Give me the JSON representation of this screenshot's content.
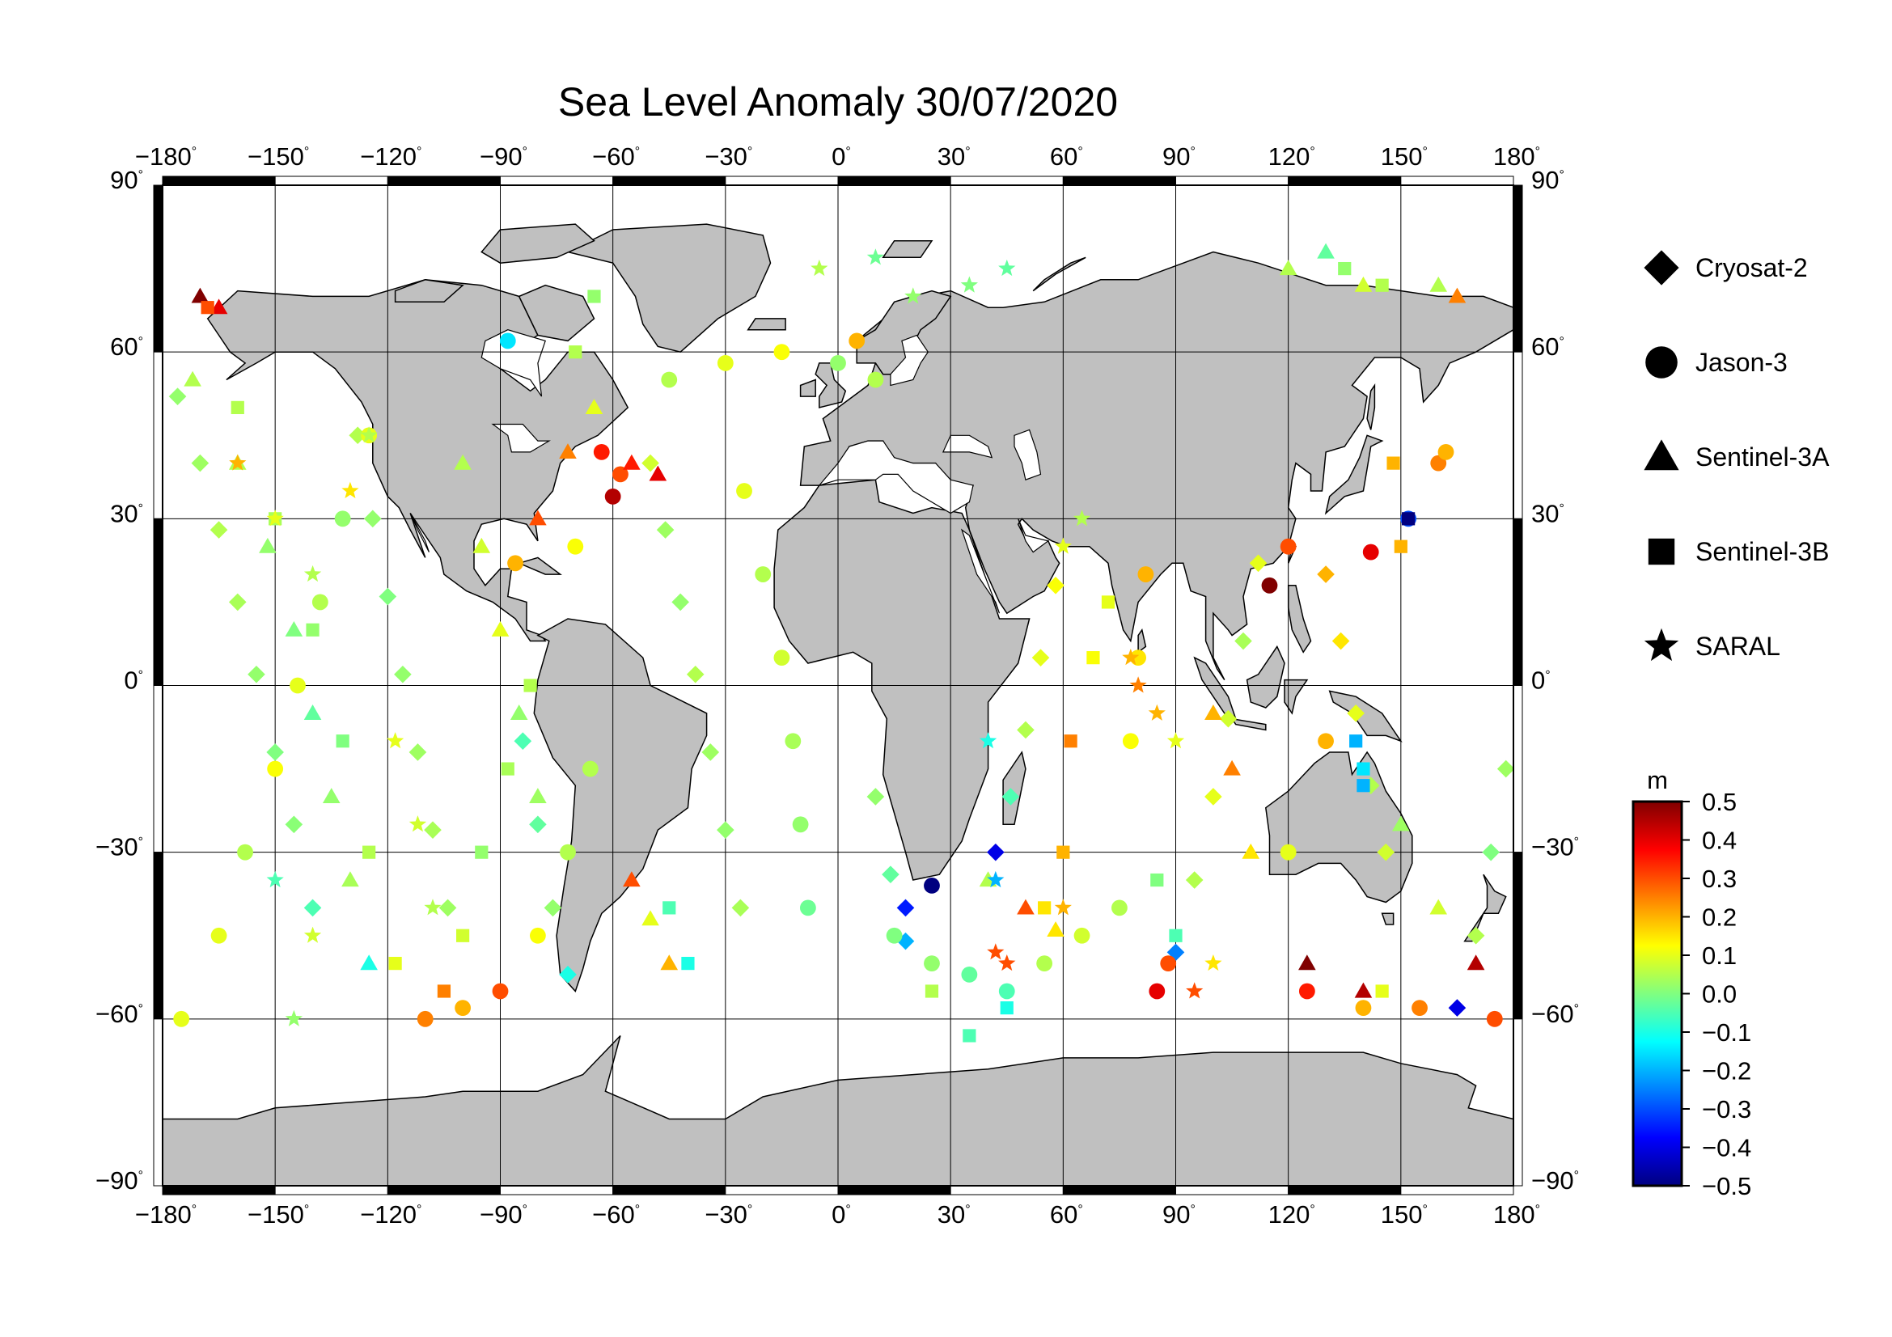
{
  "title": "Sea Level Anomaly 30/07/2020",
  "axes": {
    "lon_ticks": [
      -180,
      -150,
      -120,
      -90,
      -60,
      -30,
      0,
      30,
      60,
      90,
      120,
      150,
      180
    ],
    "lat_ticks": [
      90,
      60,
      30,
      0,
      -30,
      -60,
      -90
    ],
    "degree_symbol": "°"
  },
  "legend": [
    {
      "marker": "diamond",
      "label": "Cryosat-2"
    },
    {
      "marker": "circle",
      "label": "Jason-3"
    },
    {
      "marker": "triangle",
      "label": "Sentinel-3A"
    },
    {
      "marker": "square",
      "label": "Sentinel-3B"
    },
    {
      "marker": "star",
      "label": "SARAL"
    }
  ],
  "colorbar": {
    "unit": "m",
    "min": -0.5,
    "max": 0.5,
    "ticks": [
      "0.5",
      "0.4",
      "0.3",
      "0.2",
      "0.1",
      "0.0",
      "−0.1",
      "−0.2",
      "−0.3",
      "−0.4",
      "−0.5"
    ],
    "colors": [
      "#000080",
      "#0000ff",
      "#0080ff",
      "#00ffff",
      "#80ff80",
      "#ffff00",
      "#ff8000",
      "#ff0000",
      "#800000"
    ]
  },
  "land_color": "#c0c0c0",
  "ocean_color": "#ffffff",
  "chart_data": {
    "type": "scatter",
    "title": "Sea Level Anomaly 30/07/2020",
    "xlim": [
      -180,
      180
    ],
    "ylim": [
      -90,
      90
    ],
    "color_scale": {
      "min": -0.5,
      "max": 0.5,
      "unit": "m"
    },
    "series": [
      {
        "name": "Cryosat-2",
        "marker": "diamond",
        "points": [
          [
            -176,
            52,
            0.02
          ],
          [
            -170,
            40,
            0.03
          ],
          [
            -165,
            28,
            0.05
          ],
          [
            -160,
            15,
            0.04
          ],
          [
            -155,
            2,
            0.02
          ],
          [
            -150,
            -12,
            0.0
          ],
          [
            -145,
            -25,
            0.01
          ],
          [
            -140,
            -40,
            -0.05
          ],
          [
            -128,
            45,
            0.05
          ],
          [
            -124,
            30,
            0.02
          ],
          [
            -120,
            16,
            0.0
          ],
          [
            -116,
            2,
            0.02
          ],
          [
            -112,
            -12,
            0.03
          ],
          [
            -108,
            -26,
            0.04
          ],
          [
            -104,
            -40,
            0.03
          ],
          [
            -84,
            -10,
            -0.05
          ],
          [
            -80,
            -25,
            -0.03
          ],
          [
            -76,
            -40,
            0.02
          ],
          [
            -72,
            -52,
            -0.1
          ],
          [
            -50,
            40,
            0.08
          ],
          [
            -46,
            28,
            0.03
          ],
          [
            -42,
            15,
            0.02
          ],
          [
            -38,
            2,
            0.05
          ],
          [
            -34,
            -12,
            0.03
          ],
          [
            -30,
            -26,
            0.02
          ],
          [
            -26,
            -40,
            0.04
          ],
          [
            10,
            -20,
            0.02
          ],
          [
            14,
            -34,
            -0.03
          ],
          [
            18,
            -46,
            -0.2
          ],
          [
            18,
            -40,
            -0.35
          ],
          [
            42,
            -30,
            -0.4
          ],
          [
            46,
            -20,
            -0.05
          ],
          [
            50,
            -8,
            0.05
          ],
          [
            54,
            5,
            0.1
          ],
          [
            58,
            18,
            0.12
          ],
          [
            90,
            -48,
            -0.25
          ],
          [
            95,
            -35,
            0.05
          ],
          [
            100,
            -20,
            0.1
          ],
          [
            104,
            -6,
            0.08
          ],
          [
            108,
            8,
            0.04
          ],
          [
            112,
            22,
            0.1
          ],
          [
            130,
            20,
            0.2
          ],
          [
            134,
            8,
            0.15
          ],
          [
            138,
            -5,
            0.1
          ],
          [
            142,
            -18,
            0.05
          ],
          [
            146,
            -30,
            0.08
          ],
          [
            165,
            -58,
            -0.4
          ],
          [
            170,
            -45,
            0.05
          ],
          [
            174,
            -30,
            0.0
          ],
          [
            178,
            -15,
            0.03
          ]
        ]
      },
      {
        "name": "Jason-3",
        "marker": "circle",
        "points": [
          [
            -175,
            -60,
            0.1
          ],
          [
            -165,
            -45,
            0.1
          ],
          [
            -158,
            -30,
            0.05
          ],
          [
            -150,
            -15,
            0.12
          ],
          [
            -144,
            0,
            0.1
          ],
          [
            -138,
            15,
            0.05
          ],
          [
            -132,
            30,
            0.02
          ],
          [
            -125,
            45,
            0.1
          ],
          [
            -110,
            -60,
            0.25
          ],
          [
            -100,
            -58,
            0.2
          ],
          [
            -90,
            -55,
            0.3
          ],
          [
            -80,
            -45,
            0.12
          ],
          [
            -72,
            -30,
            0.05
          ],
          [
            -66,
            -15,
            0.05
          ],
          [
            -88,
            62,
            -0.15
          ],
          [
            -60,
            34,
            0.45
          ],
          [
            -58,
            38,
            0.3
          ],
          [
            -63,
            42,
            0.35
          ],
          [
            -70,
            25,
            0.12
          ],
          [
            -86,
            22,
            0.2
          ],
          [
            -45,
            55,
            0.05
          ],
          [
            -30,
            58,
            0.1
          ],
          [
            -15,
            60,
            0.12
          ],
          [
            0,
            58,
            0.02
          ],
          [
            5,
            62,
            0.2
          ],
          [
            10,
            55,
            0.05
          ],
          [
            -25,
            35,
            0.1
          ],
          [
            -20,
            20,
            0.05
          ],
          [
            -15,
            5,
            0.08
          ],
          [
            -12,
            -10,
            0.04
          ],
          [
            -10,
            -25,
            0.02
          ],
          [
            -8,
            -40,
            -0.02
          ],
          [
            15,
            -45,
            0.0
          ],
          [
            25,
            -50,
            0.02
          ],
          [
            35,
            -52,
            -0.03
          ],
          [
            25,
            -36,
            -0.5
          ],
          [
            45,
            -55,
            -0.05
          ],
          [
            55,
            -50,
            0.05
          ],
          [
            65,
            -45,
            0.08
          ],
          [
            75,
            -40,
            0.05
          ],
          [
            85,
            -55,
            0.4
          ],
          [
            88,
            -50,
            0.3
          ],
          [
            80,
            5,
            0.15
          ],
          [
            82,
            20,
            0.2
          ],
          [
            78,
            -10,
            0.12
          ],
          [
            115,
            18,
            0.5
          ],
          [
            120,
            25,
            0.3
          ],
          [
            142,
            24,
            0.4
          ],
          [
            152,
            30,
            -0.3
          ],
          [
            160,
            40,
            0.25
          ],
          [
            162,
            42,
            0.2
          ],
          [
            130,
            -10,
            0.2
          ],
          [
            120,
            -30,
            0.1
          ],
          [
            125,
            -55,
            0.35
          ],
          [
            140,
            -58,
            0.2
          ],
          [
            155,
            -58,
            0.25
          ],
          [
            175,
            -60,
            0.3
          ]
        ]
      },
      {
        "name": "Sentinel-3A",
        "marker": "triangle",
        "points": [
          [
            -170,
            70,
            0.5
          ],
          [
            -165,
            68,
            0.4
          ],
          [
            -172,
            55,
            0.05
          ],
          [
            -160,
            40,
            0.05
          ],
          [
            -152,
            25,
            0.02
          ],
          [
            -145,
            10,
            0.0
          ],
          [
            -140,
            -5,
            -0.03
          ],
          [
            -135,
            -20,
            0.02
          ],
          [
            -130,
            -35,
            0.04
          ],
          [
            -125,
            -50,
            -0.1
          ],
          [
            -100,
            40,
            0.05
          ],
          [
            -95,
            25,
            0.08
          ],
          [
            -90,
            10,
            0.1
          ],
          [
            -85,
            -5,
            0.02
          ],
          [
            -80,
            -20,
            0.03
          ],
          [
            -80,
            30,
            0.3
          ],
          [
            -72,
            42,
            0.25
          ],
          [
            -65,
            50,
            0.1
          ],
          [
            -55,
            40,
            0.35
          ],
          [
            -48,
            38,
            0.4
          ],
          [
            -55,
            -35,
            0.3
          ],
          [
            -50,
            -42,
            0.1
          ],
          [
            -45,
            -50,
            0.2
          ],
          [
            40,
            -35,
            0.05
          ],
          [
            50,
            -40,
            0.3
          ],
          [
            58,
            -44,
            0.15
          ],
          [
            120,
            75,
            0.05
          ],
          [
            130,
            78,
            -0.03
          ],
          [
            140,
            72,
            0.08
          ],
          [
            160,
            72,
            0.05
          ],
          [
            165,
            70,
            0.25
          ],
          [
            100,
            -5,
            0.2
          ],
          [
            105,
            -15,
            0.25
          ],
          [
            110,
            -30,
            0.15
          ],
          [
            125,
            -50,
            0.5
          ],
          [
            140,
            -55,
            0.45
          ],
          [
            170,
            -50,
            0.45
          ],
          [
            160,
            -40,
            0.08
          ],
          [
            150,
            -25,
            0.03
          ]
        ]
      },
      {
        "name": "Sentinel-3B",
        "marker": "square",
        "points": [
          [
            -168,
            68,
            0.3
          ],
          [
            -160,
            50,
            0.05
          ],
          [
            -150,
            30,
            0.04
          ],
          [
            -140,
            10,
            0.02
          ],
          [
            -132,
            -10,
            0.0
          ],
          [
            -125,
            -30,
            0.05
          ],
          [
            -118,
            -50,
            0.1
          ],
          [
            -105,
            -55,
            0.25
          ],
          [
            -100,
            -45,
            0.08
          ],
          [
            -95,
            -30,
            0.02
          ],
          [
            -88,
            -15,
            0.04
          ],
          [
            -82,
            0,
            0.05
          ],
          [
            -70,
            60,
            0.05
          ],
          [
            -65,
            70,
            0.02
          ],
          [
            -45,
            -40,
            -0.05
          ],
          [
            -40,
            -50,
            -0.1
          ],
          [
            25,
            -55,
            0.05
          ],
          [
            35,
            -63,
            -0.05
          ],
          [
            45,
            -58,
            -0.1
          ],
          [
            55,
            -40,
            0.15
          ],
          [
            60,
            -30,
            0.2
          ],
          [
            62,
            -10,
            0.25
          ],
          [
            68,
            5,
            0.12
          ],
          [
            72,
            15,
            0.1
          ],
          [
            85,
            -35,
            0.0
          ],
          [
            90,
            -45,
            -0.05
          ],
          [
            135,
            75,
            0.02
          ],
          [
            145,
            72,
            0.05
          ],
          [
            150,
            25,
            0.2
          ],
          [
            152,
            30,
            -0.5
          ],
          [
            148,
            40,
            0.2
          ],
          [
            140,
            -15,
            -0.15
          ],
          [
            138,
            -10,
            -0.2
          ],
          [
            140,
            -18,
            -0.2
          ],
          [
            145,
            -55,
            0.1
          ]
        ]
      },
      {
        "name": "SARAL",
        "marker": "star",
        "points": [
          [
            -160,
            40,
            0.2
          ],
          [
            -150,
            30,
            0.1
          ],
          [
            -140,
            20,
            0.05
          ],
          [
            -130,
            35,
            0.15
          ],
          [
            -125,
            45,
            0.05
          ],
          [
            -118,
            -10,
            0.1
          ],
          [
            -112,
            -25,
            0.08
          ],
          [
            -108,
            -40,
            0.05
          ],
          [
            -150,
            -35,
            -0.05
          ],
          [
            -145,
            -60,
            0.02
          ],
          [
            -140,
            -45,
            0.08
          ],
          [
            -5,
            75,
            0.05
          ],
          [
            10,
            77,
            -0.02
          ],
          [
            20,
            70,
            0.02
          ],
          [
            35,
            72,
            0.0
          ],
          [
            45,
            75,
            -0.03
          ],
          [
            40,
            -10,
            -0.1
          ],
          [
            42,
            -35,
            -0.2
          ],
          [
            42,
            -48,
            0.3
          ],
          [
            45,
            -50,
            0.3
          ],
          [
            60,
            -40,
            0.2
          ],
          [
            78,
            5,
            0.2
          ],
          [
            80,
            0,
            0.25
          ],
          [
            85,
            -5,
            0.2
          ],
          [
            95,
            -55,
            0.3
          ],
          [
            100,
            -50,
            0.15
          ],
          [
            60,
            25,
            0.1
          ],
          [
            65,
            30,
            0.05
          ],
          [
            90,
            -10,
            0.1
          ]
        ]
      }
    ]
  }
}
